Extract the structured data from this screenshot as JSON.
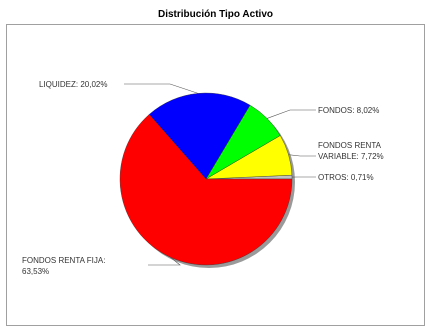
{
  "chart_data": {
    "type": "pie",
    "title": "Distribución Tipo Activo",
    "slices": [
      {
        "label": "FONDOS RENTA FIJA:",
        "value_text": "63,53%",
        "value": 63.53,
        "color": "#ff0000"
      },
      {
        "label": "LIQUIDEZ:",
        "value_text": "20,02%",
        "value": 20.02,
        "color": "#0000ff"
      },
      {
        "label": "FONDOS:",
        "value_text": "8,02%",
        "value": 8.02,
        "color": "#00ff00"
      },
      {
        "label": "FONDOS RENTA VARIABLE:",
        "value_text": "7,72%",
        "value": 7.72,
        "color": "#ffff00"
      },
      {
        "label": "OTROS:",
        "value_text": "0,71%",
        "value": 0.71,
        "color": "#c0c0c0"
      }
    ],
    "slice_order_clockwise_from_3_oclock_counterclockwise": [
      "OTROS",
      "FONDOS RENTA VARIABLE",
      "FONDOS",
      "LIQUIDEZ",
      "FONDOS RENTA FIJA"
    ],
    "label_lines": {
      "liquidez": "LIQUIDEZ: 20,02%",
      "fondos": "FONDOS: 8,02%",
      "frv_line1": "FONDOS RENTA",
      "frv_line2": "VARIABLE: 7,72%",
      "otros": "OTROS: 0,71%",
      "frf_line1": "FONDOS RENTA FIJA:",
      "frf_line2": "63,53%"
    },
    "legend": "none",
    "grid": false
  }
}
